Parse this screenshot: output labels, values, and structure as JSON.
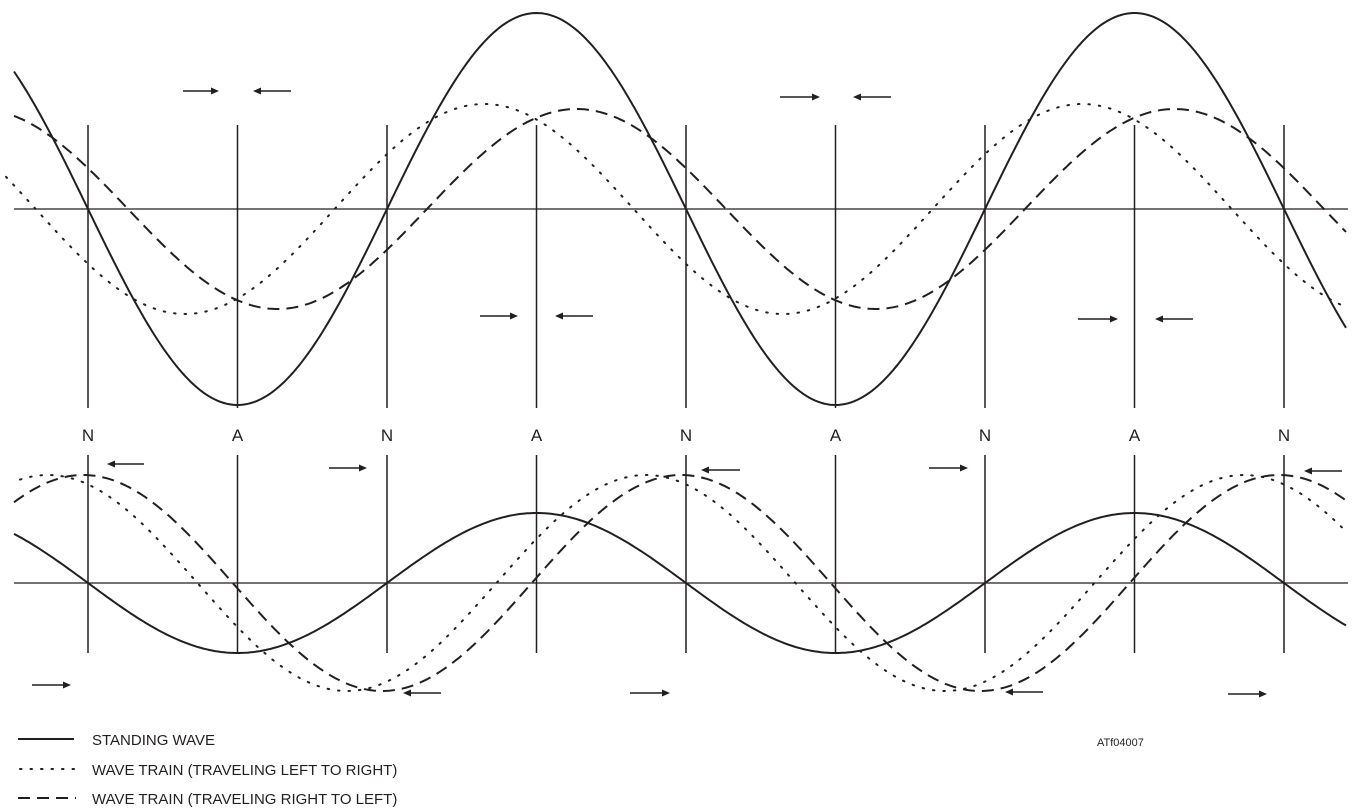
{
  "node_label": "N",
  "antinode_label": "A",
  "node_sequence": [
    "N",
    "A",
    "N",
    "A",
    "N",
    "A",
    "N",
    "A",
    "N"
  ],
  "legend": [
    {
      "style": "solid",
      "label": "STANDING WAVE"
    },
    {
      "style": "dotted",
      "label": "WAVE TRAIN (TRAVELING LEFT TO RIGHT)"
    },
    {
      "style": "dashed",
      "label": "WAVE TRAIN (TRAVELING RIGHT TO LEFT)"
    }
  ],
  "figure_code": "ATf04007",
  "colors": {
    "ink": "#231f20",
    "background": "#ffffff"
  }
}
